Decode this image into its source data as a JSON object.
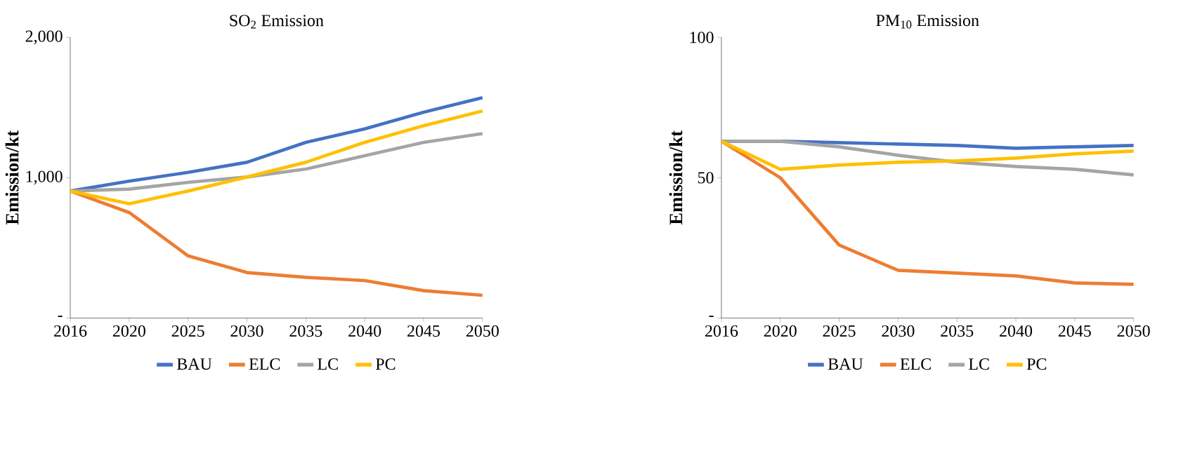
{
  "chart_data": [
    {
      "type": "line",
      "title": "SO$_{2}$ Emission",
      "ylabel": "Emission/kt",
      "categories": [
        "2016",
        "2020",
        "2025",
        "2030",
        "2035",
        "2040",
        "2045",
        "2050"
      ],
      "ylim": [
        0,
        2000
      ],
      "yticks": [
        {
          "value": 0,
          "label": "-"
        },
        {
          "value": 1000,
          "label": "1,000"
        },
        {
          "value": 2000,
          "label": "2,000"
        }
      ],
      "legend": "bottom",
      "series": [
        {
          "name": "BAU",
          "color": "#4472c4",
          "values": [
            905,
            976,
            1038,
            1110,
            1252,
            1348,
            1467,
            1571
          ]
        },
        {
          "name": "ELC",
          "color": "#ed7d31",
          "values": [
            905,
            752,
            443,
            324,
            290,
            267,
            195,
            162
          ]
        },
        {
          "name": "LC",
          "color": "#a5a5a5",
          "values": [
            905,
            919,
            967,
            1005,
            1062,
            1157,
            1252,
            1314
          ]
        },
        {
          "name": "PC",
          "color": "#ffc000",
          "values": [
            905,
            814,
            905,
            1005,
            1110,
            1252,
            1371,
            1476
          ]
        }
      ]
    },
    {
      "type": "line",
      "title": "PM$_{10}$ Emission",
      "ylabel": "Emission/kt",
      "categories": [
        "2016",
        "2020",
        "2025",
        "2030",
        "2035",
        "2040",
        "2045",
        "2050"
      ],
      "ylim": [
        0,
        100
      ],
      "yticks": [
        {
          "value": 0,
          "label": "-"
        },
        {
          "value": 50,
          "label": "50"
        },
        {
          "value": 100,
          "label": "100"
        }
      ],
      "legend": "bottom",
      "series": [
        {
          "name": "BAU",
          "color": "#4472c4",
          "values": [
            63,
            63,
            62.5,
            62,
            61.5,
            60.5,
            61,
            61.5
          ]
        },
        {
          "name": "ELC",
          "color": "#ed7d31",
          "values": [
            63,
            50,
            26,
            17,
            16,
            15,
            12.5,
            12
          ]
        },
        {
          "name": "LC",
          "color": "#a5a5a5",
          "values": [
            63,
            63,
            61,
            58,
            55.5,
            54,
            53,
            51
          ]
        },
        {
          "name": "PC",
          "color": "#ffc000",
          "values": [
            63,
            53,
            54.5,
            55.5,
            56,
            57,
            58.5,
            59.5
          ]
        }
      ]
    }
  ]
}
